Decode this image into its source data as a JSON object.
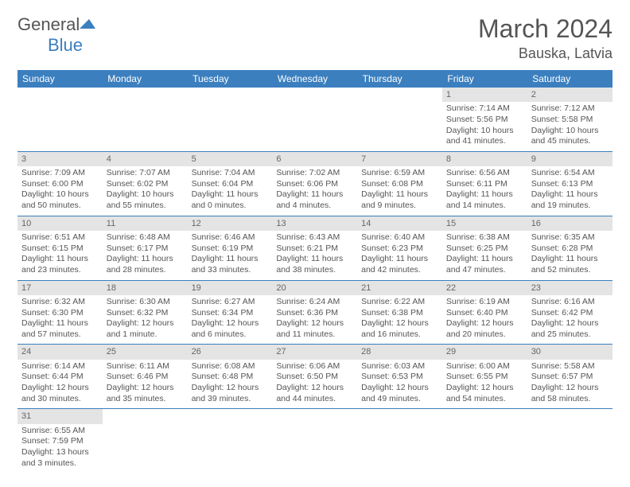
{
  "logo": {
    "text1": "General",
    "text2": "Blue"
  },
  "title": {
    "month": "March 2024",
    "location": "Bauska, Latvia"
  },
  "colors": {
    "headerBg": "#3b7fbf",
    "dayHeaderBg": "#e4e4e4",
    "text": "#555555"
  },
  "weekdays": [
    "Sunday",
    "Monday",
    "Tuesday",
    "Wednesday",
    "Thursday",
    "Friday",
    "Saturday"
  ],
  "weeks": [
    [
      null,
      null,
      null,
      null,
      null,
      {
        "n": "1",
        "sr": "Sunrise: 7:14 AM",
        "ss": "Sunset: 5:56 PM",
        "d1": "Daylight: 10 hours",
        "d2": "and 41 minutes."
      },
      {
        "n": "2",
        "sr": "Sunrise: 7:12 AM",
        "ss": "Sunset: 5:58 PM",
        "d1": "Daylight: 10 hours",
        "d2": "and 45 minutes."
      }
    ],
    [
      {
        "n": "3",
        "sr": "Sunrise: 7:09 AM",
        "ss": "Sunset: 6:00 PM",
        "d1": "Daylight: 10 hours",
        "d2": "and 50 minutes."
      },
      {
        "n": "4",
        "sr": "Sunrise: 7:07 AM",
        "ss": "Sunset: 6:02 PM",
        "d1": "Daylight: 10 hours",
        "d2": "and 55 minutes."
      },
      {
        "n": "5",
        "sr": "Sunrise: 7:04 AM",
        "ss": "Sunset: 6:04 PM",
        "d1": "Daylight: 11 hours",
        "d2": "and 0 minutes."
      },
      {
        "n": "6",
        "sr": "Sunrise: 7:02 AM",
        "ss": "Sunset: 6:06 PM",
        "d1": "Daylight: 11 hours",
        "d2": "and 4 minutes."
      },
      {
        "n": "7",
        "sr": "Sunrise: 6:59 AM",
        "ss": "Sunset: 6:08 PM",
        "d1": "Daylight: 11 hours",
        "d2": "and 9 minutes."
      },
      {
        "n": "8",
        "sr": "Sunrise: 6:56 AM",
        "ss": "Sunset: 6:11 PM",
        "d1": "Daylight: 11 hours",
        "d2": "and 14 minutes."
      },
      {
        "n": "9",
        "sr": "Sunrise: 6:54 AM",
        "ss": "Sunset: 6:13 PM",
        "d1": "Daylight: 11 hours",
        "d2": "and 19 minutes."
      }
    ],
    [
      {
        "n": "10",
        "sr": "Sunrise: 6:51 AM",
        "ss": "Sunset: 6:15 PM",
        "d1": "Daylight: 11 hours",
        "d2": "and 23 minutes."
      },
      {
        "n": "11",
        "sr": "Sunrise: 6:48 AM",
        "ss": "Sunset: 6:17 PM",
        "d1": "Daylight: 11 hours",
        "d2": "and 28 minutes."
      },
      {
        "n": "12",
        "sr": "Sunrise: 6:46 AM",
        "ss": "Sunset: 6:19 PM",
        "d1": "Daylight: 11 hours",
        "d2": "and 33 minutes."
      },
      {
        "n": "13",
        "sr": "Sunrise: 6:43 AM",
        "ss": "Sunset: 6:21 PM",
        "d1": "Daylight: 11 hours",
        "d2": "and 38 minutes."
      },
      {
        "n": "14",
        "sr": "Sunrise: 6:40 AM",
        "ss": "Sunset: 6:23 PM",
        "d1": "Daylight: 11 hours",
        "d2": "and 42 minutes."
      },
      {
        "n": "15",
        "sr": "Sunrise: 6:38 AM",
        "ss": "Sunset: 6:25 PM",
        "d1": "Daylight: 11 hours",
        "d2": "and 47 minutes."
      },
      {
        "n": "16",
        "sr": "Sunrise: 6:35 AM",
        "ss": "Sunset: 6:28 PM",
        "d1": "Daylight: 11 hours",
        "d2": "and 52 minutes."
      }
    ],
    [
      {
        "n": "17",
        "sr": "Sunrise: 6:32 AM",
        "ss": "Sunset: 6:30 PM",
        "d1": "Daylight: 11 hours",
        "d2": "and 57 minutes."
      },
      {
        "n": "18",
        "sr": "Sunrise: 6:30 AM",
        "ss": "Sunset: 6:32 PM",
        "d1": "Daylight: 12 hours",
        "d2": "and 1 minute."
      },
      {
        "n": "19",
        "sr": "Sunrise: 6:27 AM",
        "ss": "Sunset: 6:34 PM",
        "d1": "Daylight: 12 hours",
        "d2": "and 6 minutes."
      },
      {
        "n": "20",
        "sr": "Sunrise: 6:24 AM",
        "ss": "Sunset: 6:36 PM",
        "d1": "Daylight: 12 hours",
        "d2": "and 11 minutes."
      },
      {
        "n": "21",
        "sr": "Sunrise: 6:22 AM",
        "ss": "Sunset: 6:38 PM",
        "d1": "Daylight: 12 hours",
        "d2": "and 16 minutes."
      },
      {
        "n": "22",
        "sr": "Sunrise: 6:19 AM",
        "ss": "Sunset: 6:40 PM",
        "d1": "Daylight: 12 hours",
        "d2": "and 20 minutes."
      },
      {
        "n": "23",
        "sr": "Sunrise: 6:16 AM",
        "ss": "Sunset: 6:42 PM",
        "d1": "Daylight: 12 hours",
        "d2": "and 25 minutes."
      }
    ],
    [
      {
        "n": "24",
        "sr": "Sunrise: 6:14 AM",
        "ss": "Sunset: 6:44 PM",
        "d1": "Daylight: 12 hours",
        "d2": "and 30 minutes."
      },
      {
        "n": "25",
        "sr": "Sunrise: 6:11 AM",
        "ss": "Sunset: 6:46 PM",
        "d1": "Daylight: 12 hours",
        "d2": "and 35 minutes."
      },
      {
        "n": "26",
        "sr": "Sunrise: 6:08 AM",
        "ss": "Sunset: 6:48 PM",
        "d1": "Daylight: 12 hours",
        "d2": "and 39 minutes."
      },
      {
        "n": "27",
        "sr": "Sunrise: 6:06 AM",
        "ss": "Sunset: 6:50 PM",
        "d1": "Daylight: 12 hours",
        "d2": "and 44 minutes."
      },
      {
        "n": "28",
        "sr": "Sunrise: 6:03 AM",
        "ss": "Sunset: 6:53 PM",
        "d1": "Daylight: 12 hours",
        "d2": "and 49 minutes."
      },
      {
        "n": "29",
        "sr": "Sunrise: 6:00 AM",
        "ss": "Sunset: 6:55 PM",
        "d1": "Daylight: 12 hours",
        "d2": "and 54 minutes."
      },
      {
        "n": "30",
        "sr": "Sunrise: 5:58 AM",
        "ss": "Sunset: 6:57 PM",
        "d1": "Daylight: 12 hours",
        "d2": "and 58 minutes."
      }
    ],
    [
      {
        "n": "31",
        "sr": "Sunrise: 6:55 AM",
        "ss": "Sunset: 7:59 PM",
        "d1": "Daylight: 13 hours",
        "d2": "and 3 minutes."
      },
      null,
      null,
      null,
      null,
      null,
      null
    ]
  ]
}
